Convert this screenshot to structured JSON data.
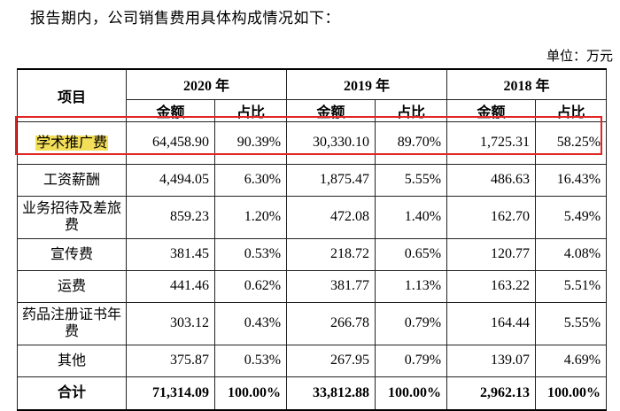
{
  "intro_text": "报告期内，公司销售费用具体构成情况如下：",
  "unit_text": "单位：万元",
  "table": {
    "item_header": "项目",
    "years": [
      "2020 年",
      "2019 年",
      "2018 年"
    ],
    "sub_headers": [
      "金额",
      "占比",
      "金额",
      "占比",
      "金额",
      "占比"
    ],
    "rows": [
      {
        "cat": "学术推广费",
        "cells": [
          "64,458.90",
          "90.39%",
          "30,330.10",
          "89.70%",
          "1,725.31",
          "58.25%"
        ]
      },
      {
        "cat": "工资薪酬",
        "cells": [
          "4,494.05",
          "6.30%",
          "1,875.47",
          "5.55%",
          "486.63",
          "16.43%"
        ]
      },
      {
        "cat": "业务招待及差旅费",
        "cells": [
          "859.23",
          "1.20%",
          "472.08",
          "1.40%",
          "162.70",
          "5.49%"
        ]
      },
      {
        "cat": "宣传费",
        "cells": [
          "381.45",
          "0.53%",
          "218.72",
          "0.65%",
          "120.77",
          "4.08%"
        ]
      },
      {
        "cat": "运费",
        "cells": [
          "441.46",
          "0.62%",
          "381.77",
          "1.13%",
          "163.22",
          "5.51%"
        ]
      },
      {
        "cat": "药品注册证书年费",
        "cells": [
          "303.12",
          "0.43%",
          "266.78",
          "0.79%",
          "164.44",
          "5.55%"
        ]
      },
      {
        "cat": "其他",
        "cells": [
          "375.87",
          "0.53%",
          "267.95",
          "0.79%",
          "139.07",
          "4.69%"
        ]
      }
    ],
    "total": {
      "cat": "合计",
      "cells": [
        "71,314.09",
        "100.00%",
        "33,812.88",
        "100.00%",
        "2,962.13",
        "100.00%"
      ]
    }
  }
}
